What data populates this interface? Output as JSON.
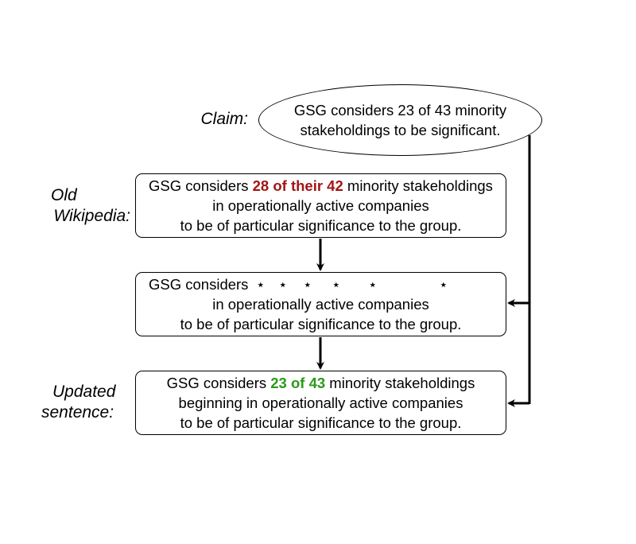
{
  "labels": {
    "claim": "Claim:",
    "old_line1": "Old",
    "old_line2": "Wikipedia:",
    "updated_line1": "Updated",
    "updated_line2": "sentence:"
  },
  "claim": {
    "line1": "GSG considers 23 of 43 minority",
    "line2": "stakeholdings to be significant."
  },
  "old_wikipedia": {
    "line1_prefix": "GSG considers ",
    "line1_highlight": "28 of their 42",
    "line1_suffix": " minority stakeholdings",
    "line2": "in operationally active companies",
    "line3": "to be of particular significance to the group."
  },
  "masked": {
    "line1_prefix": "GSG considers",
    "mask_symbol": "⋆",
    "line2": "in operationally active companies",
    "line3": "to be of particular significance to the group."
  },
  "updated": {
    "line1_prefix": "GSG considers ",
    "line1_highlight": "23 of 43",
    "line1_suffix": " minority stakeholdings",
    "line2": "beginning in operationally active companies",
    "line3": "to be of particular significance to the group."
  },
  "colors": {
    "removed_highlight": "#a31515",
    "added_highlight": "#2a9a1a"
  }
}
